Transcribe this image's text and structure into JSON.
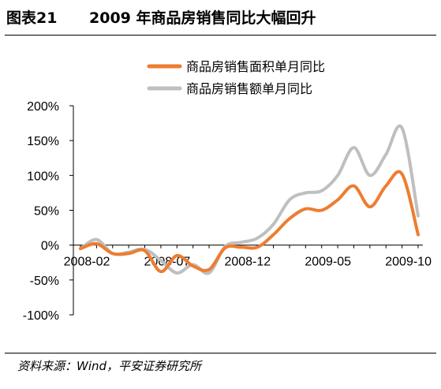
{
  "header": {
    "figure_label": "图表21",
    "title": "2009 年商品房销售同比大幅回升"
  },
  "source": "资料来源：Wind，平安证券研究所",
  "colors": {
    "area_series": "#ED7D31",
    "amount_series": "#BFBFBF",
    "axis": "#000000"
  },
  "chart_data": {
    "type": "line",
    "title": "2009 年商品房销售同比大幅回升",
    "xlabel": "",
    "ylabel": "",
    "ylim": [
      -1.0,
      2.0
    ],
    "y_ticks": [
      -1.0,
      -0.5,
      0.0,
      0.5,
      1.0,
      1.5,
      2.0
    ],
    "y_tick_labels": [
      "-100%",
      "-50%",
      "0%",
      "50%",
      "100%",
      "150%",
      "200%"
    ],
    "y_format": "percent",
    "x": [
      "2008-02",
      "2008-03",
      "2008-04",
      "2008-05",
      "2008-06",
      "2008-07",
      "2008-08",
      "2008-09",
      "2008-10",
      "2008-11",
      "2008-12",
      "2009-01",
      "2009-02",
      "2009-03",
      "2009-04",
      "2009-05",
      "2009-06",
      "2009-07",
      "2009-08",
      "2009-09",
      "2009-10",
      "2009-11"
    ],
    "x_tick_labels": [
      "2008-02",
      "2008-07",
      "2008-12",
      "2009-05",
      "2009-10"
    ],
    "x_tick_indices": [
      0,
      5,
      10,
      15,
      20
    ],
    "legend_position": "top",
    "grid": false,
    "series": [
      {
        "name": "商品房销售面积单月同比",
        "color": "#ED7D31",
        "values": [
          -0.05,
          0.02,
          -0.12,
          -0.12,
          -0.08,
          -0.38,
          -0.15,
          -0.3,
          -0.35,
          -0.04,
          -0.03,
          -0.03,
          0.15,
          0.38,
          0.52,
          0.5,
          0.65,
          0.85,
          0.55,
          0.85,
          1.02,
          0.15
        ]
      },
      {
        "name": "商品房销售额单月同比",
        "color": "#BFBFBF",
        "values": [
          -0.05,
          0.08,
          -0.12,
          -0.1,
          -0.06,
          -0.22,
          -0.4,
          -0.28,
          -0.4,
          -0.02,
          0.04,
          0.1,
          0.3,
          0.65,
          0.75,
          0.78,
          1.0,
          1.4,
          1.0,
          1.3,
          1.68,
          0.42
        ]
      }
    ]
  }
}
